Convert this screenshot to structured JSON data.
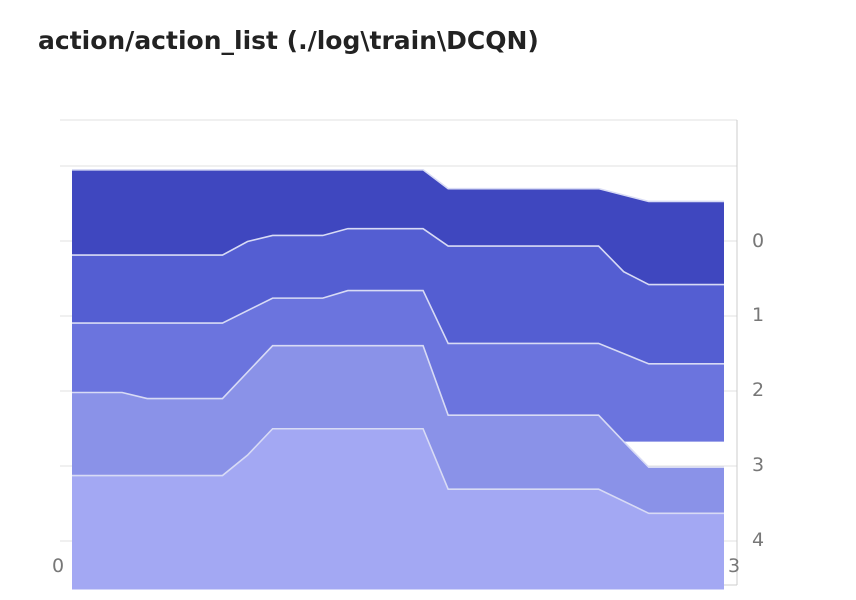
{
  "title": "action/action_list (./log\\train\\DCQN)",
  "chart_data": {
    "type": "area",
    "title": "action/action_list (./log\\train\\DCQN)",
    "xlabel": "",
    "ylabel": "",
    "x_ticks": [
      "0",
      "3"
    ],
    "y_ticks": [
      "0",
      "1",
      "2",
      "3",
      "4"
    ],
    "xlim": [
      0,
      3
    ],
    "layer_colors": [
      "#3f47bf",
      "#545ed2",
      "#6b74de",
      "#8a92e8",
      "#a3a8f3"
    ],
    "layers": [
      {
        "points": [
          [
            0.0,
            0.05
          ],
          [
            0.6,
            0.05
          ],
          [
            0.7,
            0.05
          ],
          [
            1.0,
            0.05
          ],
          [
            1.1,
            0.05
          ],
          [
            1.4,
            0.05
          ],
          [
            1.5,
            0.3
          ],
          [
            2.1,
            0.3
          ],
          [
            2.3,
            0.47
          ],
          [
            2.6,
            0.47
          ]
        ],
        "bottom": [
          [
            0.0,
            1.18
          ],
          [
            0.6,
            1.18
          ],
          [
            0.7,
            1.0
          ],
          [
            0.8,
            0.92
          ],
          [
            1.0,
            0.92
          ],
          [
            1.1,
            0.83
          ],
          [
            1.4,
            0.83
          ],
          [
            1.5,
            1.06
          ],
          [
            2.1,
            1.06
          ],
          [
            2.2,
            1.4
          ],
          [
            2.3,
            1.57
          ],
          [
            2.6,
            1.57
          ]
        ]
      },
      {
        "points": [
          [
            0.0,
            1.18
          ],
          [
            0.6,
            1.18
          ],
          [
            0.7,
            1.0
          ],
          [
            0.8,
            0.92
          ],
          [
            1.0,
            0.92
          ],
          [
            1.1,
            0.83
          ],
          [
            1.4,
            0.83
          ],
          [
            1.5,
            1.06
          ],
          [
            2.1,
            1.06
          ],
          [
            2.2,
            1.4
          ],
          [
            2.3,
            1.57
          ],
          [
            2.6,
            1.57
          ]
        ],
        "bottom": [
          [
            0.0,
            2.08
          ],
          [
            0.6,
            2.08
          ],
          [
            0.8,
            1.75
          ],
          [
            1.0,
            1.75
          ],
          [
            1.1,
            1.65
          ],
          [
            1.4,
            1.65
          ],
          [
            1.5,
            2.35
          ],
          [
            2.1,
            2.35
          ],
          [
            2.3,
            2.62
          ],
          [
            2.6,
            2.62
          ]
        ]
      },
      {
        "points": [
          [
            0.0,
            2.08
          ],
          [
            0.6,
            2.08
          ],
          [
            0.8,
            1.75
          ],
          [
            1.0,
            1.75
          ],
          [
            1.1,
            1.65
          ],
          [
            1.4,
            1.65
          ],
          [
            1.5,
            2.35
          ],
          [
            2.1,
            2.35
          ],
          [
            2.3,
            2.62
          ],
          [
            2.6,
            2.62
          ]
        ],
        "bottom": [
          [
            0.0,
            3.0
          ],
          [
            0.2,
            3.0
          ],
          [
            0.3,
            3.08
          ],
          [
            0.6,
            3.08
          ],
          [
            0.8,
            2.38
          ],
          [
            1.4,
            2.38
          ],
          [
            1.5,
            3.3
          ],
          [
            2.1,
            3.3
          ],
          [
            2.2,
            3.65
          ],
          [
            2.6,
            3.65
          ]
        ]
      },
      {
        "points": [
          [
            0.0,
            3.0
          ],
          [
            0.2,
            3.0
          ],
          [
            0.3,
            3.08
          ],
          [
            0.6,
            3.08
          ],
          [
            0.8,
            2.38
          ],
          [
            1.4,
            2.38
          ],
          [
            1.5,
            3.3
          ],
          [
            2.1,
            3.3
          ],
          [
            2.2,
            3.65
          ],
          [
            2.3,
            3.99
          ],
          [
            2.6,
            3.99
          ]
        ],
        "bottom": [
          [
            0.0,
            4.1
          ],
          [
            0.6,
            4.1
          ],
          [
            0.7,
            3.83
          ],
          [
            0.8,
            3.48
          ],
          [
            1.4,
            3.48
          ],
          [
            1.5,
            4.28
          ],
          [
            2.1,
            4.28
          ],
          [
            2.3,
            4.6
          ],
          [
            2.6,
            4.6
          ]
        ]
      },
      {
        "points": [
          [
            0.0,
            4.1
          ],
          [
            0.6,
            4.1
          ],
          [
            0.7,
            3.83
          ],
          [
            0.8,
            3.48
          ],
          [
            1.4,
            3.48
          ],
          [
            1.5,
            4.28
          ],
          [
            2.1,
            4.28
          ],
          [
            2.3,
            4.6
          ],
          [
            2.6,
            4.6
          ]
        ],
        "bottom": [
          [
            0.0,
            5.61
          ],
          [
            2.6,
            5.61
          ]
        ]
      }
    ]
  }
}
